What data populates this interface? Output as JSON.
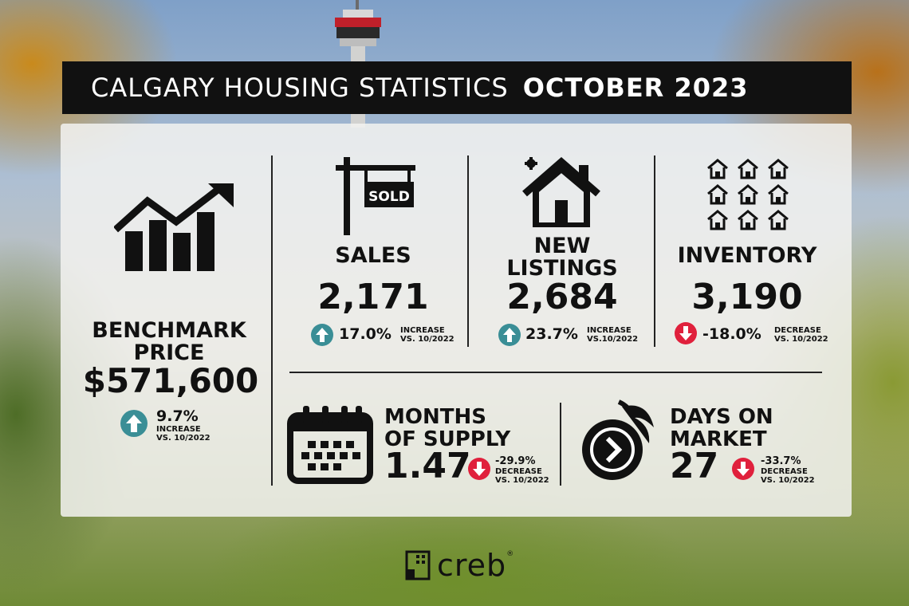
{
  "header": {
    "title": "CALGARY HOUSING STATISTICS",
    "date": "OCTOBER 2023"
  },
  "benchmark": {
    "label_line1": "BENCHMARK",
    "label_line2": "PRICE",
    "value": "$571,600",
    "change": "9.7%",
    "change_word": "INCREASE",
    "change_ref": "VS. 10/2022"
  },
  "sales": {
    "sign_text": "SOLD",
    "label": "SALES",
    "value": "2,171",
    "change": "17.0%",
    "change_word": "INCREASE",
    "change_ref": "VS. 10/2022"
  },
  "new_listings": {
    "label_line1": "NEW",
    "label_line2": "LISTINGS",
    "value": "2,684",
    "change": "23.7%",
    "change_word": "INCREASE",
    "change_ref": "VS.10/2022"
  },
  "inventory": {
    "label": "INVENTORY",
    "value": "3,190",
    "change": "-18.0%",
    "change_word": "DECREASE",
    "change_ref": "VS. 10/2022"
  },
  "months_supply": {
    "label_line1": "MONTHS",
    "label_line2": "OF SUPPLY",
    "value": "1.47",
    "change": "-29.9%",
    "change_word": "DECREASE",
    "change_ref": "VS. 10/2022"
  },
  "days_on_market": {
    "label_line1": "DAYS ON",
    "label_line2": "MARKET",
    "value": "27",
    "change": "-33.7%",
    "change_word": "DECREASE",
    "change_ref": "VS. 10/2022"
  },
  "logo": {
    "text": "creb",
    "reg": "®"
  },
  "icons": {
    "chart": "growth-chart-icon",
    "sold_sign": "sold-sign-icon",
    "house": "new-house-icon",
    "houses": "houses-grid-icon",
    "calendar": "calendar-icon",
    "clock": "fast-clock-icon",
    "up": "arrow-up-icon",
    "down": "arrow-down-icon"
  },
  "colors": {
    "increase": "#3a8e96",
    "decrease": "#e0203c",
    "header_bg": "#111111",
    "panel_bg": "#f2f2f0"
  }
}
